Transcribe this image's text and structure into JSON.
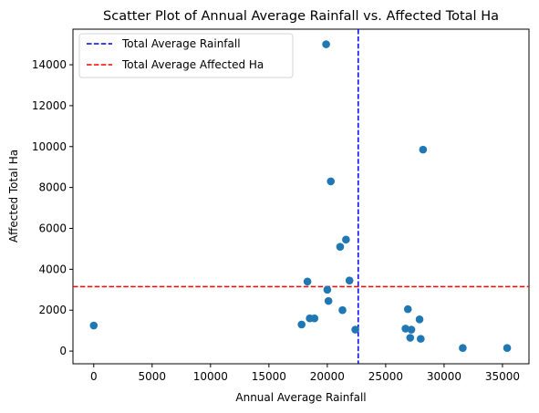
{
  "chart_data": {
    "type": "scatter",
    "title": "Scatter Plot of Annual Average Rainfall vs. Affected Total Ha",
    "xlabel": "Annual Average Rainfall",
    "ylabel": "Affected Total Ha",
    "xlim": [
      -1780,
      37270
    ],
    "ylim": [
      -620,
      15740
    ],
    "xticks": [
      0,
      5000,
      10000,
      15000,
      20000,
      25000,
      30000,
      35000
    ],
    "yticks": [
      0,
      2000,
      4000,
      6000,
      8000,
      10000,
      12000,
      14000
    ],
    "xtick_labels": [
      "0",
      "5000",
      "10000",
      "15000",
      "20000",
      "25000",
      "30000",
      "35000"
    ],
    "ytick_labels": [
      "0",
      "2000",
      "4000",
      "6000",
      "8000",
      "10000",
      "12000",
      "14000"
    ],
    "grid": false,
    "legend_position": "top-left",
    "marker_color": "#1f77b4",
    "points": [
      {
        "x": 0,
        "y": 1250
      },
      {
        "x": 17800,
        "y": 1300
      },
      {
        "x": 18300,
        "y": 3400
      },
      {
        "x": 18500,
        "y": 1600
      },
      {
        "x": 18900,
        "y": 1600
      },
      {
        "x": 19900,
        "y": 15000
      },
      {
        "x": 20000,
        "y": 3000
      },
      {
        "x": 20100,
        "y": 2450
      },
      {
        "x": 20300,
        "y": 8300
      },
      {
        "x": 21100,
        "y": 5100
      },
      {
        "x": 21300,
        "y": 2000
      },
      {
        "x": 21600,
        "y": 5450
      },
      {
        "x": 21900,
        "y": 3450
      },
      {
        "x": 22400,
        "y": 1050
      },
      {
        "x": 26700,
        "y": 1100
      },
      {
        "x": 26900,
        "y": 2050
      },
      {
        "x": 27100,
        "y": 650
      },
      {
        "x": 27200,
        "y": 1050
      },
      {
        "x": 27900,
        "y": 1550
      },
      {
        "x": 28000,
        "y": 600
      },
      {
        "x": 28200,
        "y": 9850
      },
      {
        "x": 31600,
        "y": 150
      },
      {
        "x": 35400,
        "y": 150
      }
    ],
    "reference_lines": [
      {
        "orientation": "vertical",
        "value": 22650,
        "color": "#0000ff",
        "style": "dashed",
        "label": "Total Average Rainfall"
      },
      {
        "orientation": "horizontal",
        "value": 3150,
        "color": "#ff0000",
        "style": "dashed",
        "label": "Total Average Affected Ha"
      }
    ]
  }
}
